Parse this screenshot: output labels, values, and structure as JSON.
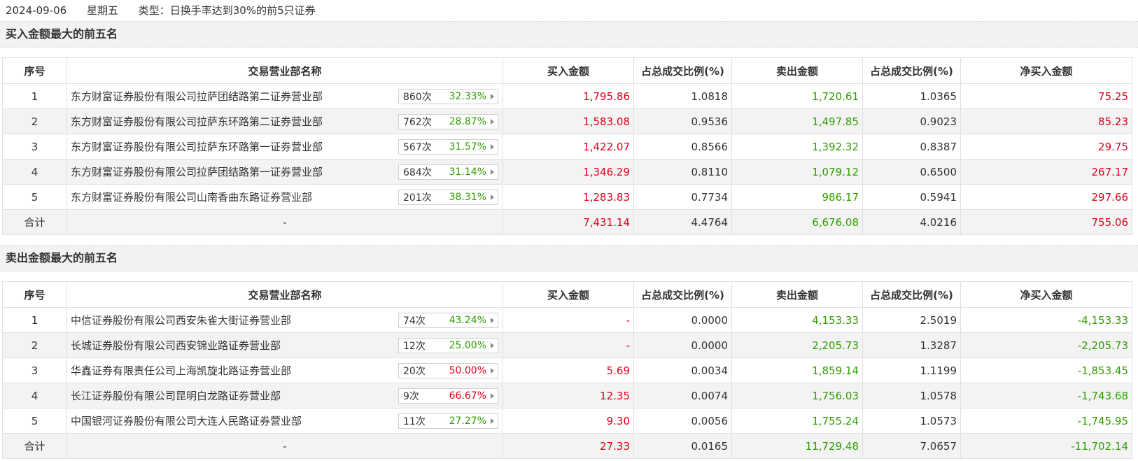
{
  "header": {
    "date": "2024-09-06",
    "weekday": "星期五",
    "type": "类型：日换手率达到30%的前5只证券"
  },
  "columns": [
    "序号",
    "交易营业部名称",
    "买入金额",
    "占总成交比例(%)",
    "卖出金额",
    "占总成交比例(%)",
    "净买入金额"
  ],
  "buy_section": {
    "title": "买入金额最大的前五名",
    "rows": [
      {
        "idx": "1",
        "name": "东方财富证券股份有限公司拉萨团结路第二证券营业部",
        "count": "860次",
        "pct": "32.33%",
        "pct_color": "green",
        "buy": "1,795.86",
        "buy_ratio": "1.0818",
        "sell": "1,720.61",
        "sell_ratio": "1.0365",
        "net": "75.25",
        "net_color": "red"
      },
      {
        "idx": "2",
        "name": "东方财富证券股份有限公司拉萨东环路第二证券营业部",
        "count": "762次",
        "pct": "28.87%",
        "pct_color": "green",
        "buy": "1,583.08",
        "buy_ratio": "0.9536",
        "sell": "1,497.85",
        "sell_ratio": "0.9023",
        "net": "85.23",
        "net_color": "red"
      },
      {
        "idx": "3",
        "name": "东方财富证券股份有限公司拉萨东环路第一证券营业部",
        "count": "567次",
        "pct": "31.57%",
        "pct_color": "green",
        "buy": "1,422.07",
        "buy_ratio": "0.8566",
        "sell": "1,392.32",
        "sell_ratio": "0.8387",
        "net": "29.75",
        "net_color": "red"
      },
      {
        "idx": "4",
        "name": "东方财富证券股份有限公司拉萨团结路第一证券营业部",
        "count": "684次",
        "pct": "31.14%",
        "pct_color": "green",
        "buy": "1,346.29",
        "buy_ratio": "0.8110",
        "sell": "1,079.12",
        "sell_ratio": "0.6500",
        "net": "267.17",
        "net_color": "red"
      },
      {
        "idx": "5",
        "name": "东方财富证券股份有限公司山南香曲东路证券营业部",
        "count": "201次",
        "pct": "38.31%",
        "pct_color": "green",
        "buy": "1,283.83",
        "buy_ratio": "0.7734",
        "sell": "986.17",
        "sell_ratio": "0.5941",
        "net": "297.66",
        "net_color": "red"
      }
    ],
    "total": {
      "label": "合计",
      "name": "-",
      "buy": "7,431.14",
      "buy_ratio": "4.4764",
      "sell": "6,676.08",
      "sell_ratio": "4.0216",
      "net": "755.06",
      "net_color": "red"
    }
  },
  "sell_section": {
    "title": "卖出金额最大的前五名",
    "rows": [
      {
        "idx": "1",
        "name": "中信证券股份有限公司西安朱雀大街证券营业部",
        "count": "74次",
        "pct": "43.24%",
        "pct_color": "green",
        "buy": "-",
        "buy_ratio": "0.0000",
        "sell": "4,153.33",
        "sell_ratio": "2.5019",
        "net": "-4,153.33",
        "net_color": "green"
      },
      {
        "idx": "2",
        "name": "长城证券股份有限公司西安锦业路证券营业部",
        "count": "12次",
        "pct": "25.00%",
        "pct_color": "green",
        "buy": "-",
        "buy_ratio": "0.0000",
        "sell": "2,205.73",
        "sell_ratio": "1.3287",
        "net": "-2,205.73",
        "net_color": "green"
      },
      {
        "idx": "3",
        "name": "华鑫证券有限责任公司上海凯旋北路证券营业部",
        "count": "20次",
        "pct": "50.00%",
        "pct_color": "red",
        "buy": "5.69",
        "buy_ratio": "0.0034",
        "sell": "1,859.14",
        "sell_ratio": "1.1199",
        "net": "-1,853.45",
        "net_color": "green"
      },
      {
        "idx": "4",
        "name": "长江证券股份有限公司昆明白龙路证券营业部",
        "count": "9次",
        "pct": "66.67%",
        "pct_color": "red",
        "buy": "12.35",
        "buy_ratio": "0.0074",
        "sell": "1,756.03",
        "sell_ratio": "1.0578",
        "net": "-1,743.68",
        "net_color": "green"
      },
      {
        "idx": "5",
        "name": "中国银河证券股份有限公司大连人民路证券营业部",
        "count": "11次",
        "pct": "27.27%",
        "pct_color": "green",
        "buy": "9.30",
        "buy_ratio": "0.0056",
        "sell": "1,755.24",
        "sell_ratio": "1.0573",
        "net": "-1,745.95",
        "net_color": "green"
      }
    ],
    "total": {
      "label": "合计",
      "name": "-",
      "buy": "27.33",
      "buy_ratio": "0.0165",
      "sell": "11,729.48",
      "sell_ratio": "7.0657",
      "net": "-11,702.14",
      "net_color": "green"
    }
  },
  "colors": {
    "red": "#e0001a",
    "green": "#2f9e00",
    "row_alt": "#f3f3f3"
  },
  "icons": {
    "badge_arrow": "caret-right-icon"
  }
}
